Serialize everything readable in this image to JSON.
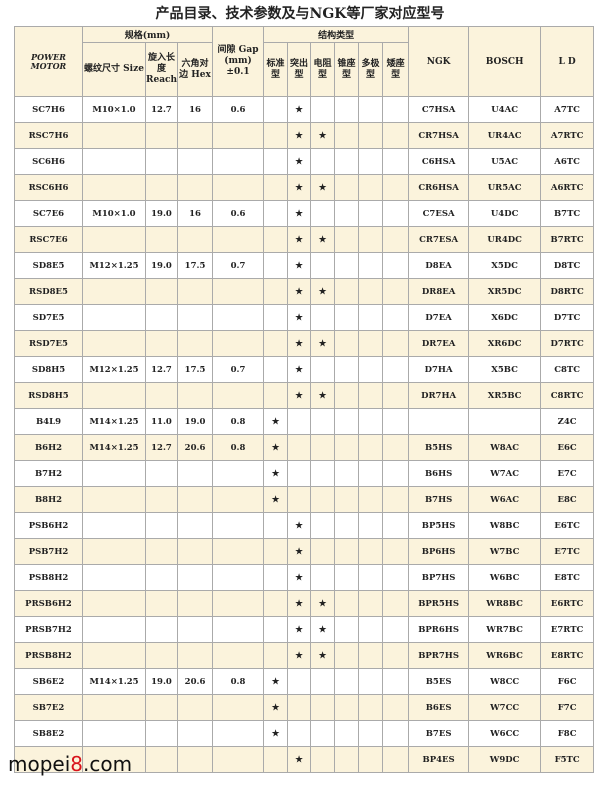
{
  "header": {
    "title": "产品目录、技术参数及与NGK等厂家对应型号"
  },
  "table": {
    "logo": "POWER MOTOR",
    "groups": [
      "规格(mm)",
      "结构类型"
    ],
    "columns": [
      null,
      "螺纹尺寸 Size",
      "旋入长度 Reach",
      "六角对边 Hex",
      "间隙 Gap (mm) ±0.1",
      "标准型",
      "突出型",
      "电阻型",
      "锥座型",
      "多极型",
      "矮座型",
      "NGK",
      "BOSCH",
      "L D"
    ],
    "rows": [
      [
        "SC7H6",
        "M10×1.0",
        "12.7",
        "16",
        "0.6",
        null,
        "★",
        null,
        null,
        null,
        null,
        "C7HSA",
        "U4AC",
        "A7TC"
      ],
      [
        "RSC7H6",
        null,
        null,
        null,
        null,
        null,
        "★",
        "★",
        null,
        null,
        null,
        "CR7HSA",
        "UR4AC",
        "A7RTC"
      ],
      [
        "SC6H6",
        null,
        null,
        null,
        null,
        null,
        "★",
        null,
        null,
        null,
        null,
        "C6HSA",
        "U5AC",
        "A6TC"
      ],
      [
        "RSC6H6",
        null,
        null,
        null,
        null,
        null,
        "★",
        "★",
        null,
        null,
        null,
        "CR6HSA",
        "UR5AC",
        "A6RTC"
      ],
      [
        "SC7E6",
        "M10×1.0",
        "19.0",
        "16",
        "0.6",
        null,
        "★",
        null,
        null,
        null,
        null,
        "C7ESA",
        "U4DC",
        "B7TC"
      ],
      [
        "RSC7E6",
        null,
        null,
        null,
        null,
        null,
        "★",
        "★",
        null,
        null,
        null,
        "CR7ESA",
        "UR4DC",
        "B7RTC"
      ],
      [
        "SD8E5",
        "M12×1.25",
        "19.0",
        "17.5",
        "0.7",
        null,
        "★",
        null,
        null,
        null,
        null,
        "D8EA",
        "X5DC",
        "D8TC"
      ],
      [
        "RSD8E5",
        null,
        null,
        null,
        null,
        null,
        "★",
        "★",
        null,
        null,
        null,
        "DR8EA",
        "XR5DC",
        "D8RTC"
      ],
      [
        "SD7E5",
        null,
        null,
        null,
        null,
        null,
        "★",
        null,
        null,
        null,
        null,
        "D7EA",
        "X6DC",
        "D7TC"
      ],
      [
        "RSD7E5",
        null,
        null,
        null,
        null,
        null,
        "★",
        "★",
        null,
        null,
        null,
        "DR7EA",
        "XR6DC",
        "D7RTC"
      ],
      [
        "SD8H5",
        "M12×1.25",
        "12.7",
        "17.5",
        "0.7",
        null,
        "★",
        null,
        null,
        null,
        null,
        "D7HA",
        "X5BC",
        "C8TC"
      ],
      [
        "RSD8H5",
        null,
        null,
        null,
        null,
        null,
        "★",
        "★",
        null,
        null,
        null,
        "DR7HA",
        "XR5BC",
        "C8RTC"
      ],
      [
        "B4L9",
        "M14×1.25",
        "11.0",
        "19.0",
        "0.8",
        "★",
        null,
        null,
        null,
        null,
        null,
        null,
        null,
        "Z4C"
      ],
      [
        "B6H2",
        "M14×1.25",
        "12.7",
        "20.6",
        "0.8",
        "★",
        null,
        null,
        null,
        null,
        null,
        "B5HS",
        "W8AC",
        "E6C"
      ],
      [
        "B7H2",
        null,
        null,
        null,
        null,
        "★",
        null,
        null,
        null,
        null,
        null,
        "B6HS",
        "W7AC",
        "E7C"
      ],
      [
        "B8H2",
        null,
        null,
        null,
        null,
        "★",
        null,
        null,
        null,
        null,
        null,
        "B7HS",
        "W6AC",
        "E8C"
      ],
      [
        "PSB6H2",
        null,
        null,
        null,
        null,
        null,
        "★",
        null,
        null,
        null,
        null,
        "BP5HS",
        "W8BC",
        "E6TC"
      ],
      [
        "PSB7H2",
        null,
        null,
        null,
        null,
        null,
        "★",
        null,
        null,
        null,
        null,
        "BP6HS",
        "W7BC",
        "E7TC"
      ],
      [
        "PSB8H2",
        null,
        null,
        null,
        null,
        null,
        "★",
        null,
        null,
        null,
        null,
        "BP7HS",
        "W6BC",
        "E8TC"
      ],
      [
        "PRSB6H2",
        null,
        null,
        null,
        null,
        null,
        "★",
        "★",
        null,
        null,
        null,
        "BPR5HS",
        "WR8BC",
        "E6RTC"
      ],
      [
        "PRSB7H2",
        null,
        null,
        null,
        null,
        null,
        "★",
        "★",
        null,
        null,
        null,
        "BPR6HS",
        "WR7BC",
        "E7RTC"
      ],
      [
        "PRSB8H2",
        null,
        null,
        null,
        null,
        null,
        "★",
        "★",
        null,
        null,
        null,
        "BPR7HS",
        "WR6BC",
        "E8RTC"
      ],
      [
        "SB6E2",
        "M14×1.25",
        "19.0",
        "20.6",
        "0.8",
        "★",
        null,
        null,
        null,
        null,
        null,
        "B5ES",
        "W8CC",
        "F6C"
      ],
      [
        "SB7E2",
        null,
        null,
        null,
        null,
        "★",
        null,
        null,
        null,
        null,
        null,
        "B6ES",
        "W7CC",
        "F7C"
      ],
      [
        "SB8E2",
        null,
        null,
        null,
        null,
        "★",
        null,
        null,
        null,
        null,
        null,
        "B7ES",
        "W6CC",
        "F8C"
      ],
      [
        null,
        null,
        null,
        null,
        null,
        null,
        "★",
        null,
        null,
        null,
        null,
        "BP4ES",
        "W9DC",
        "F5TC"
      ]
    ]
  },
  "watermark": [
    "mopei",
    "8",
    ".com"
  ]
}
